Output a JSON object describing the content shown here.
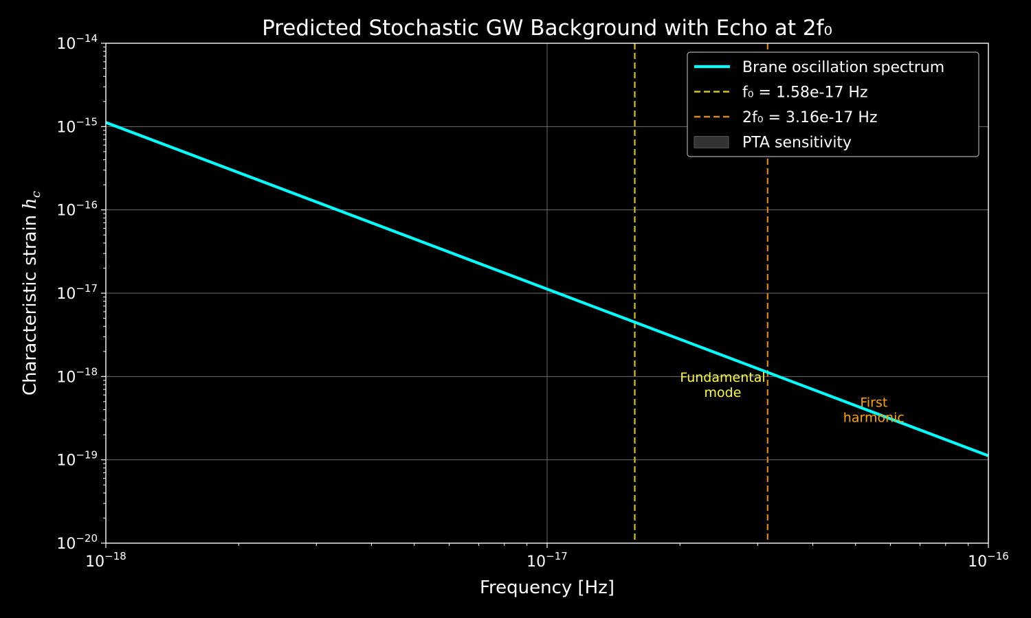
{
  "chart_data": {
    "type": "line",
    "title": "Predicted Stochastic GW Background with Echo at 2f₀",
    "xlabel": "Frequency [Hz]",
    "ylabel": "Characteristic strain",
    "ylabel_symbol": "h",
    "ylabel_sub": "c",
    "xscale": "log",
    "yscale": "log",
    "xlim": [
      1e-18,
      1e-16
    ],
    "ylim": [
      1e-20,
      1e-14
    ],
    "grid": true,
    "background": "#000000",
    "x_ticks": [
      {
        "value": 1e-18,
        "base": "10",
        "exp": "−18"
      },
      {
        "value": 1e-17,
        "base": "10",
        "exp": "−17"
      },
      {
        "value": 1e-16,
        "base": "10",
        "exp": "−16"
      }
    ],
    "y_ticks": [
      {
        "value": 1e-20,
        "base": "10",
        "exp": "−20"
      },
      {
        "value": 1e-19,
        "base": "10",
        "exp": "−19"
      },
      {
        "value": 1e-18,
        "base": "10",
        "exp": "−18"
      },
      {
        "value": 1e-17,
        "base": "10",
        "exp": "−17"
      },
      {
        "value": 1e-16,
        "base": "10",
        "exp": "−16"
      },
      {
        "value": 1e-15,
        "base": "10",
        "exp": "−15"
      },
      {
        "value": 1e-14,
        "base": "10",
        "exp": "−14"
      }
    ],
    "series": [
      {
        "name": "Brane oscillation spectrum",
        "color": "#00ffff",
        "style": "solid",
        "x": [
          1e-18,
          1e-16
        ],
        "y": [
          1.12e-15,
          1.12e-19
        ]
      }
    ],
    "vlines": [
      {
        "name": "f₀ = 1.58e-17 Hz",
        "x": 1.58e-17,
        "color": "#d4c21e",
        "style": "dashed"
      },
      {
        "name": "2f₀ = 3.16e-17 Hz",
        "x": 3.16e-17,
        "color": "#d9891a",
        "style": "dashed"
      }
    ],
    "legend": {
      "position": "top-right",
      "entries": [
        {
          "label": "Brane oscillation spectrum",
          "kind": "line-solid",
          "color": "#00ffff"
        },
        {
          "label": "f₀ = 1.58e-17 Hz",
          "kind": "line-dashed",
          "color": "#d4c21e"
        },
        {
          "label": "2f₀ = 3.16e-17 Hz",
          "kind": "line-dashed",
          "color": "#d9891a"
        },
        {
          "label": "PTA sensitivity",
          "kind": "patch",
          "color": "#333333"
        }
      ]
    },
    "annotations": [
      {
        "lines": [
          "Fundamental",
          "mode"
        ],
        "x": 2.5e-17,
        "y": 8e-19,
        "color": "#ffff33"
      },
      {
        "lines": [
          "First",
          "harmonic"
        ],
        "x": 5.5e-17,
        "y": 4e-19,
        "color": "#ffa500"
      }
    ]
  }
}
